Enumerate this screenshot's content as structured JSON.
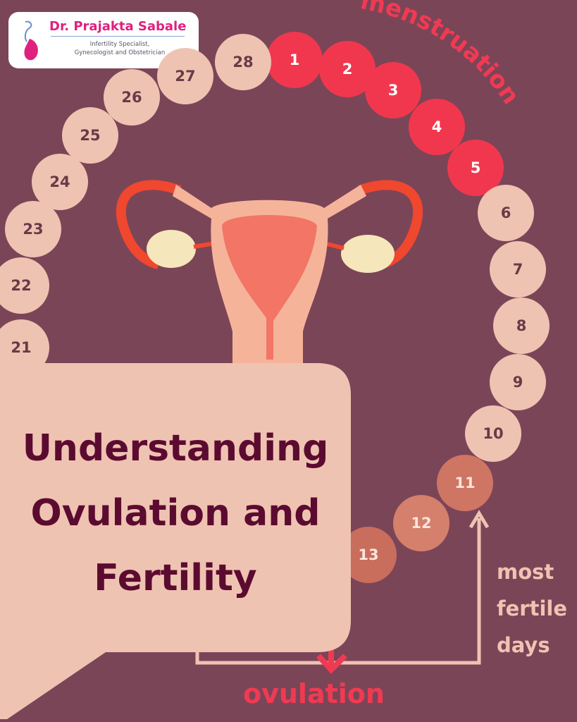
{
  "logo": {
    "name": "Dr. Prajakta Sabale",
    "subtitle_line1": "Infertility Specialist,",
    "subtitle_line2": "Gynecologist and Obstetrician"
  },
  "labels": {
    "menstruation": "menstruation",
    "ovulation": "ovulation",
    "most_fertile_days": [
      "most",
      "fertile",
      "days"
    ]
  },
  "title": [
    "Understanding",
    "Ovulation and",
    "Fertility"
  ],
  "days": {
    "menstruation": [
      "1",
      "2",
      "3",
      "4",
      "5"
    ],
    "normal": [
      "6",
      "7",
      "8",
      "9",
      "10"
    ],
    "fertile": [
      "11",
      "12",
      "13"
    ],
    "late": [
      "21",
      "22",
      "23",
      "24",
      "25",
      "26",
      "27",
      "28"
    ]
  },
  "colors": {
    "background": "#7b4558",
    "menstruation": "#f1374e",
    "pale": "#efc3b2",
    "fertile": "#cf7563",
    "title": "#5c0b30"
  }
}
